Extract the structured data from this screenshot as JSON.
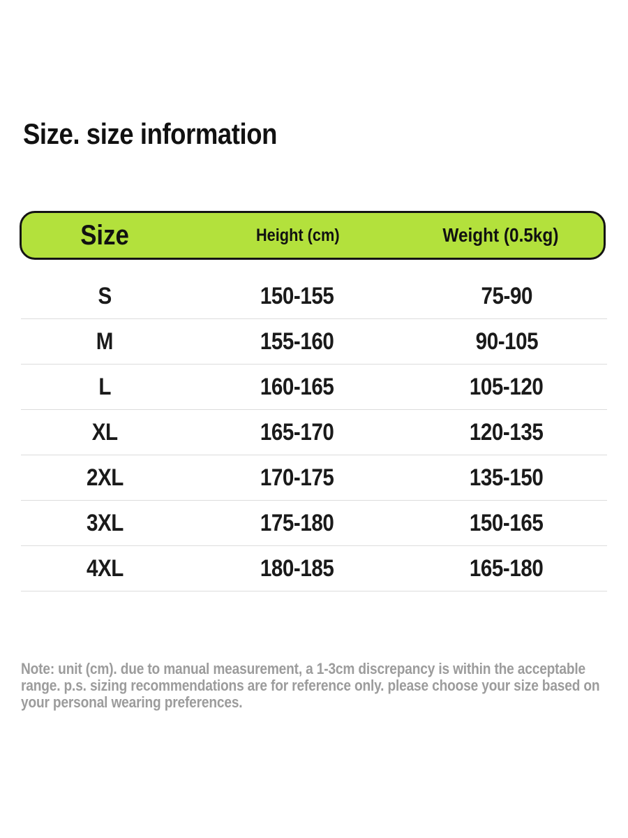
{
  "title": "Size. size information",
  "size_table": {
    "columns": [
      "Size",
      "Height (cm)",
      "Weight (0.5kg)"
    ],
    "rows": [
      {
        "size": "S",
        "height": "150-155",
        "weight": "75-90"
      },
      {
        "size": "M",
        "height": "155-160",
        "weight": "90-105"
      },
      {
        "size": "L",
        "height": "160-165",
        "weight": "105-120"
      },
      {
        "size": "XL",
        "height": "165-170",
        "weight": "120-135"
      },
      {
        "size": "2XL",
        "height": "170-175",
        "weight": "135-150"
      },
      {
        "size": "3XL",
        "height": "175-180",
        "weight": "150-165"
      },
      {
        "size": "4XL",
        "height": "180-185",
        "weight": "165-180"
      }
    ]
  },
  "note": "Note: unit (cm). due to manual measurement, a 1-3cm discrepancy is within the acceptable range. p.s. sizing recommendations are for reference only. please choose your size based on your personal wearing preferences.",
  "colors": {
    "header_bg": "#b3e13c",
    "header_border": "#141414",
    "row_divider": "#dcdcdc",
    "text": "#111111",
    "note_text": "#9c9c9c"
  }
}
